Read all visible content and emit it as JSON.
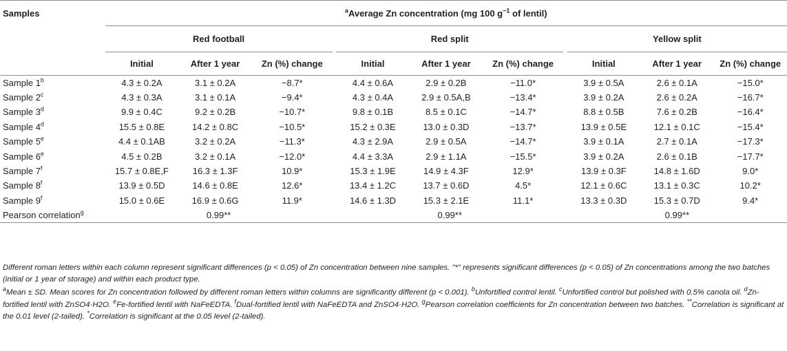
{
  "header": {
    "samples_label": "Samples",
    "title_prefix": "a",
    "title_main": "Average Zn concentration (mg 100 g",
    "title_exp": "−1",
    "title_end": " of lentil)",
    "groups": [
      "Red football",
      "Red split",
      "Yellow split"
    ],
    "subcols": [
      "Initial",
      "After 1 year",
      "Zn (%) change"
    ]
  },
  "rows": [
    {
      "label": "Sample 1",
      "sup": "b",
      "values": [
        "4.3 ± 0.2A",
        "3.1 ± 0.2A",
        "−8.7*",
        "4.4 ± 0.6A",
        "2.9 ± 0.2B",
        "−11.0*",
        "3.9 ± 0.5A",
        "2.6 ± 0.1A",
        "−15.0*"
      ]
    },
    {
      "label": "Sample 2",
      "sup": "c",
      "values": [
        "4.3 ± 0.3A",
        "3.1 ± 0.1A",
        "−9.4*",
        "4.3 ± 0.4A",
        "2.9 ± 0.5A,B",
        "−13.4*",
        "3.9 ± 0.2A",
        "2.6 ± 0.2A",
        "−16.7*"
      ]
    },
    {
      "label": "Sample 3",
      "sup": "d",
      "values": [
        "9.9 ± 0.4C",
        "9.2 ± 0.2B",
        "−10.7*",
        "9.8 ± 0.1B",
        "8.5 ± 0.1C",
        "−14.7*",
        "8.8 ± 0.5B",
        "7.6 ± 0.2B",
        "−16.4*"
      ]
    },
    {
      "label": "Sample 4",
      "sup": "d",
      "values": [
        "15.5 ± 0.8E",
        "14.2 ± 0.8C",
        "−10.5*",
        "15.2 ± 0.3E",
        "13.0 ± 0.3D",
        "−13.7*",
        "13.9 ± 0.5E",
        "12.1 ± 0.1C",
        "−15.4*"
      ]
    },
    {
      "label": "Sample 5",
      "sup": "e",
      "values": [
        "4.4 ± 0.1AB",
        "3.2 ± 0.2A",
        "−11.3*",
        "4.3 ± 2.9A",
        "2.9 ± 0.5A",
        "−14.7*",
        "3.9 ± 0.1A",
        "2.7 ± 0.1A",
        "−17.3*"
      ]
    },
    {
      "label": "Sample 6",
      "sup": "e",
      "values": [
        "4.5 ± 0.2B",
        "3.2 ± 0.1A",
        "−12.0*",
        "4.4 ± 3.3A",
        "2.9 ± 1.1A",
        "−15.5*",
        "3.9 ± 0.2A",
        "2.6 ± 0.1B",
        "−17.7*"
      ]
    },
    {
      "label": "Sample 7",
      "sup": "f",
      "values": [
        "15.7 ± 0.8E,F",
        "16.3 ± 1.3F",
        "10.9*",
        "15.3 ± 1.9E",
        "14.9 ± 4.3F",
        "12.9*",
        "13.9 ± 0.3F",
        "14.8 ± 1.6D",
        "9.0*"
      ]
    },
    {
      "label": "Sample 8",
      "sup": "f",
      "values": [
        "13.9 ± 0.5D",
        "14.6 ± 0.8E",
        "12.6*",
        "13.4 ± 1.2C",
        "13.7 ± 0.6D",
        "4.5*",
        "12.1 ± 0.6C",
        "13.1 ± 0.3C",
        "10.2*"
      ]
    },
    {
      "label": "Sample 9",
      "sup": "f",
      "values": [
        "15.0 ± 0.6E",
        "16.9 ± 0.6G",
        "11.9*",
        "14.6 ± 1.3D",
        "15.3 ± 2.1E",
        "11.1*",
        "13.3 ± 0.3D",
        "15.3 ± 0.7D",
        "9.4*"
      ]
    }
  ],
  "pearson": {
    "label": "Pearson correlation",
    "sup": "g",
    "values": [
      "0.99**",
      "0.99**",
      "0.99**"
    ]
  },
  "notes": {
    "line1": "Different roman letters within each column represent significant differences (p < 0.05) of Zn concentration between nine samples. \"*\" represents significant differences (p < 0.05) of Zn concentrations among the two batches (initial or 1 year of storage) and within each product type.",
    "a_sup": "a",
    "a_text": "Mean ± SD. Mean scores for Zn concentration followed by different roman letters within columns are significantly different (p < 0.001). ",
    "b_sup": "b",
    "b_text": "Unfortified control lentil. ",
    "c_sup": "c",
    "c_text": "Unfortified control but polished with 0.5% canola oil. ",
    "d_sup": "d",
    "d_text": "Zn-fortified lentil with ZnSO4·H2O. ",
    "e_sup": "e",
    "e_text": "Fe-fortified lentil with NaFeEDTA. ",
    "f_sup": "f",
    "f_text": "Dual-fortified lentil with NaFeEDTA and ZnSO4·H2O. ",
    "g_sup": "g",
    "g_text": "Pearson correlation coefficients for Zn concentration between two batches. ",
    "dstar_sup": "**",
    "dstar_text": "Correlation is significant at the 0.01 level (2-tailed). ",
    "star_sup": "*",
    "star_text": "Correlation is significant at the 0.05 level (2-tailed)."
  }
}
